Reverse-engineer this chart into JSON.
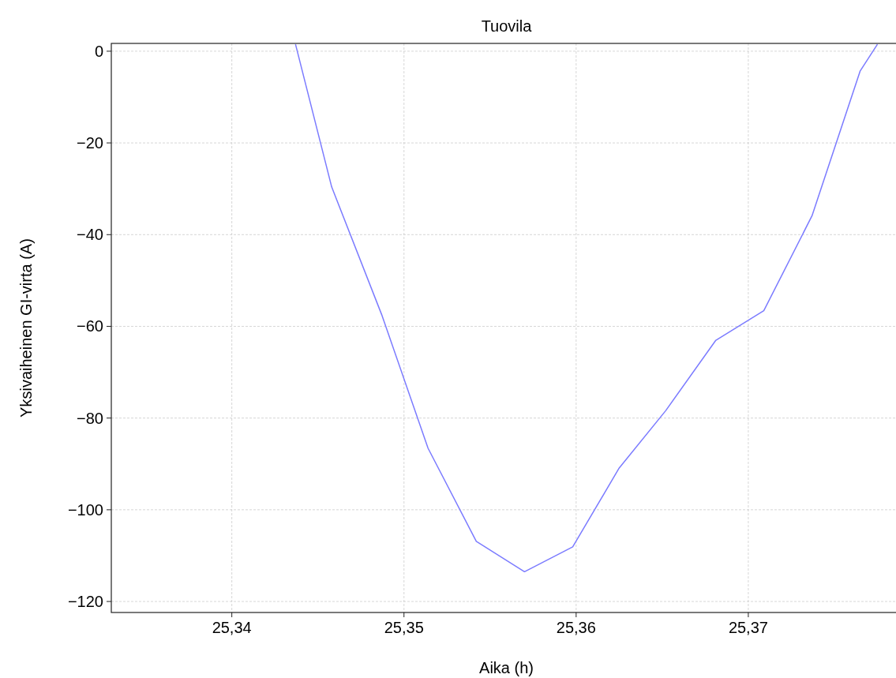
{
  "chart_data": {
    "type": "line",
    "title": "Tuovila",
    "xlabel": "Aika (h)",
    "ylabel": "Yksivaiheinen GI-virta (A)",
    "x": [
      25.3437,
      25.3458,
      25.3487,
      25.3514,
      25.3542,
      25.357,
      25.3598,
      25.3625,
      25.3652,
      25.3681,
      25.3709,
      25.3737,
      25.3765,
      25.3775
    ],
    "series": [
      {
        "color": "#7b7bff",
        "values": [
          1.5,
          -29.6,
          -57.4,
          -86.6,
          -106.9,
          -113.5,
          -108.1,
          -90.9,
          -78.4,
          -63.1,
          -56.6,
          -35.9,
          -4.3,
          1.5
        ]
      }
    ],
    "xlim": [
      25.333,
      25.3789
    ],
    "ylim": [
      -122.4,
      1.7
    ],
    "xticks": [
      {
        "value": 25.34,
        "label": "25,34"
      },
      {
        "value": 25.35,
        "label": "25,35"
      },
      {
        "value": 25.36,
        "label": "25,36"
      },
      {
        "value": 25.37,
        "label": "25,37"
      }
    ],
    "yticks": [
      {
        "value": -120,
        "label": "−120"
      },
      {
        "value": -100,
        "label": "−100"
      },
      {
        "value": -80,
        "label": "−80"
      },
      {
        "value": -60,
        "label": "−60"
      },
      {
        "value": -40,
        "label": "−40"
      },
      {
        "value": -20,
        "label": "−20"
      },
      {
        "value": 0,
        "label": "0"
      }
    ],
    "grid": true,
    "line_style": "solid"
  }
}
